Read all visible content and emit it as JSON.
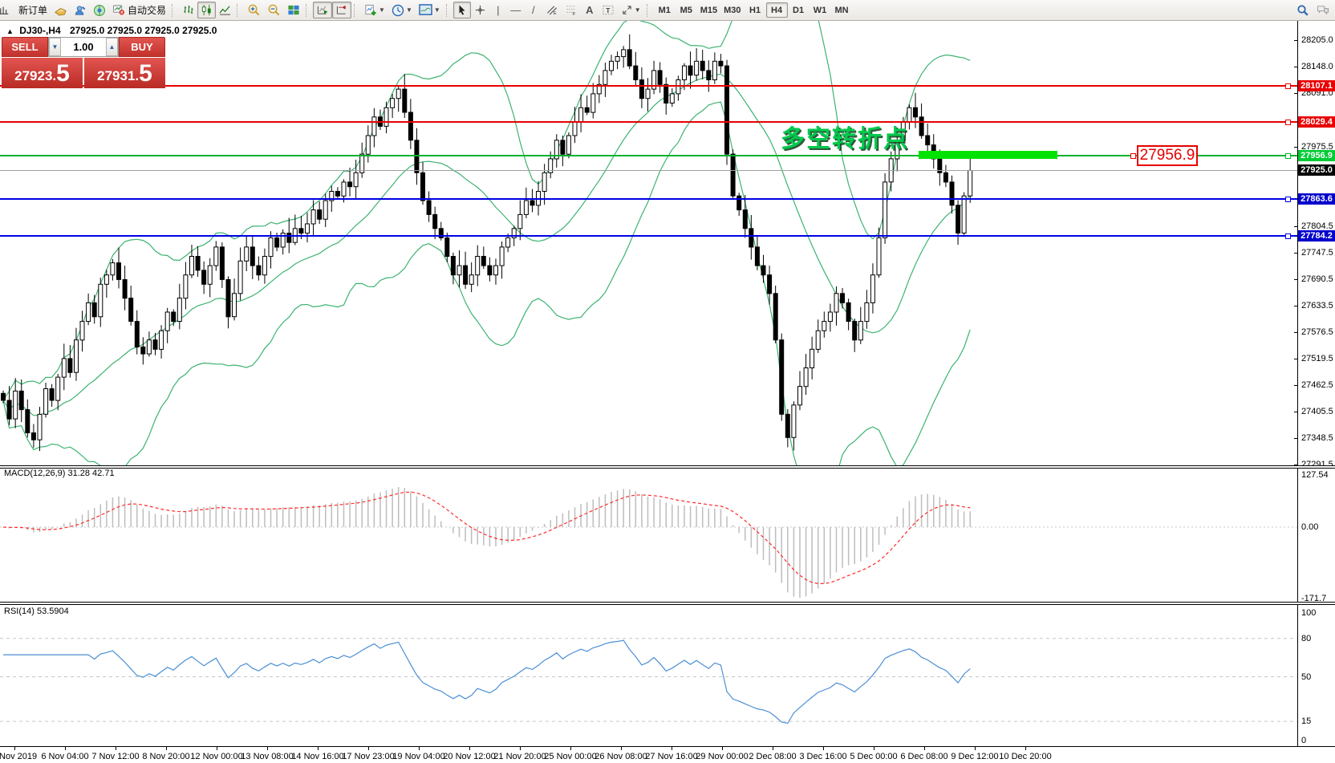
{
  "toolbar": {
    "new_order_label": "新订单",
    "auto_trading_label": "自动交易",
    "timeframes": [
      "M1",
      "M5",
      "M15",
      "M30",
      "H1",
      "H4",
      "D1",
      "W1",
      "MN"
    ],
    "active_timeframe": "H4",
    "icons": [
      "chart-grid",
      "new-order",
      "profiles",
      "market-watch",
      "signals",
      "auto-trading",
      "bar-chart",
      "candlestick",
      "line-chart",
      "zoom-in",
      "zoom-out",
      "tile-windows",
      "auto-scroll",
      "chart-shift",
      "new-chart",
      "periods",
      "templates",
      "cursor",
      "crosshair",
      "vertical-line",
      "horizontal-line",
      "trendline",
      "equidistant-channel",
      "fibonacci",
      "text",
      "text-label",
      "arrows",
      "search",
      "chat"
    ]
  },
  "chart": {
    "symbol_title": "DJ30-,H4",
    "ohlc_text": "27925.0 27925.0 27925.0 27925.0",
    "one_click": {
      "sell_label": "SELL",
      "buy_label": "BUY",
      "volume": "1.00",
      "sell_price": "27923",
      "sell_price_dot": ".",
      "sell_price_frac": "5",
      "buy_price": "27931",
      "buy_price_dot": ".",
      "buy_price_frac": "5"
    },
    "annotation_text": "多空转折点",
    "price_callout": "27956.9",
    "hlines": [
      {
        "price": 28107.1,
        "label": "28107.1",
        "color": "#e80000",
        "badge": "#e80000",
        "width": 2
      },
      {
        "price": 28029.4,
        "label": "28029.4",
        "color": "#e80000",
        "badge": "#e80000",
        "width": 2
      },
      {
        "price": 27956.9,
        "label": "27956.9",
        "color": "#00b32c",
        "badge": "#00cc33",
        "width": 2
      },
      {
        "price": 27925.0,
        "label": "27925.0",
        "color": "#a0a0a0",
        "badge": "#000000",
        "width": 1
      },
      {
        "price": 27863.6,
        "label": "27863.6",
        "color": "#0000e6",
        "badge": "#0000cc",
        "width": 2
      },
      {
        "price": 27784.2,
        "label": "27784.2",
        "color": "#0000e6",
        "badge": "#0000cc",
        "width": 2
      }
    ],
    "y_axis_labels": [
      "28205.0",
      "28148.0",
      "28091.0",
      "27975.5",
      "27804.5",
      "27747.5",
      "27690.5",
      "27633.5",
      "27576.5",
      "27519.5",
      "27462.5",
      "27405.5",
      "27348.5",
      "27291.5"
    ],
    "x_axis_labels": [
      "4 Nov 2019",
      "6 Nov 04:00",
      "7 Nov 12:00",
      "8 Nov 20:00",
      "12 Nov 00:00",
      "13 Nov 08:00",
      "14 Nov 16:00",
      "17 Nov 23:00",
      "19 Nov 04:00",
      "20 Nov 12:00",
      "21 Nov 20:00",
      "25 Nov 00:00",
      "26 Nov 08:00",
      "27 Nov 16:00",
      "29 Nov 00:00",
      "2 Dec 08:00",
      "3 Dec 16:00",
      "5 Dec 00:00",
      "6 Dec 08:00",
      "9 Dec 12:00",
      "10 Dec 20:00"
    ]
  },
  "macd_panel": {
    "label": "MACD(12,26,9) 31.28 42.71",
    "axis_max": "127.54",
    "axis_zero": "0.00",
    "axis_min": "-171.7"
  },
  "rsi_panel": {
    "label": "RSI(14) 53.5904",
    "axis_labels": [
      "100",
      "80",
      "50",
      "15",
      "0"
    ],
    "levels": [
      80,
      50,
      15
    ]
  },
  "chart_data": {
    "type": "candlestick",
    "symbol": "DJ30-",
    "timeframe": "H4",
    "title": "DJ30-,H4 27925.0 27925.0 27925.0 27925.0",
    "visible_range": {
      "from": "4 Nov 2019",
      "to": "10 Dec 2019"
    },
    "price_axis": {
      "min": 27291.5,
      "max": 28205.0
    },
    "current_price": 27925.0,
    "horizontal_levels": [
      28107.1,
      28029.4,
      27956.9,
      27863.6,
      27784.2
    ],
    "closes": [
      27430,
      27390,
      27450,
      27410,
      27360,
      27345,
      27400,
      27455,
      27430,
      27480,
      27520,
      27490,
      27560,
      27600,
      27640,
      27610,
      27680,
      27700,
      27726,
      27690,
      27650,
      27600,
      27545,
      27530,
      27560,
      27540,
      27580,
      27620,
      27600,
      27650,
      27700,
      27740,
      27710,
      27680,
      27720,
      27760,
      27690,
      27610,
      27660,
      27730,
      27760,
      27720,
      27700,
      27740,
      27780,
      27760,
      27790,
      27770,
      27800,
      27790,
      27810,
      27840,
      27820,
      27860,
      27880,
      27870,
      27900,
      27890,
      27920,
      27960,
      28000,
      28040,
      28020,
      28060,
      28080,
      28100,
      28050,
      27990,
      27920,
      27860,
      27830,
      27800,
      27780,
      27740,
      27700,
      27720,
      27680,
      27700,
      27740,
      27720,
      27700,
      27720,
      27760,
      27780,
      27800,
      27830,
      27860,
      27850,
      27880,
      27920,
      27950,
      27990,
      27960,
      28000,
      28030,
      28060,
      28050,
      28090,
      28110,
      28140,
      28160,
      28170,
      28185,
      28150,
      28120,
      28080,
      28100,
      28140,
      28110,
      28070,
      28090,
      28120,
      28150,
      28130,
      28160,
      28140,
      28120,
      28160,
      28150,
      27960,
      27870,
      27840,
      27800,
      27760,
      27720,
      27700,
      27660,
      27560,
      27400,
      27350,
      27420,
      27460,
      27500,
      27540,
      27580,
      27600,
      27620,
      27660,
      27640,
      27600,
      27560,
      27600,
      27640,
      27700,
      27780,
      27900,
      27950,
      27990,
      28030,
      28060,
      28040,
      28000,
      27980,
      27950,
      27920,
      27900,
      27850,
      27790,
      27870,
      27925
    ],
    "indicators": {
      "bollinger": {
        "period": 20,
        "deviation": 2,
        "color": "#3CB371"
      },
      "macd": {
        "fast": 12,
        "slow": 26,
        "signal": 9,
        "values_shown": "31.28 42.71",
        "range_shown": [
          127.54,
          -171.7
        ]
      },
      "rsi": {
        "period": 14,
        "value_shown": 53.5904,
        "levels": [
          80,
          50,
          15
        ]
      }
    }
  }
}
